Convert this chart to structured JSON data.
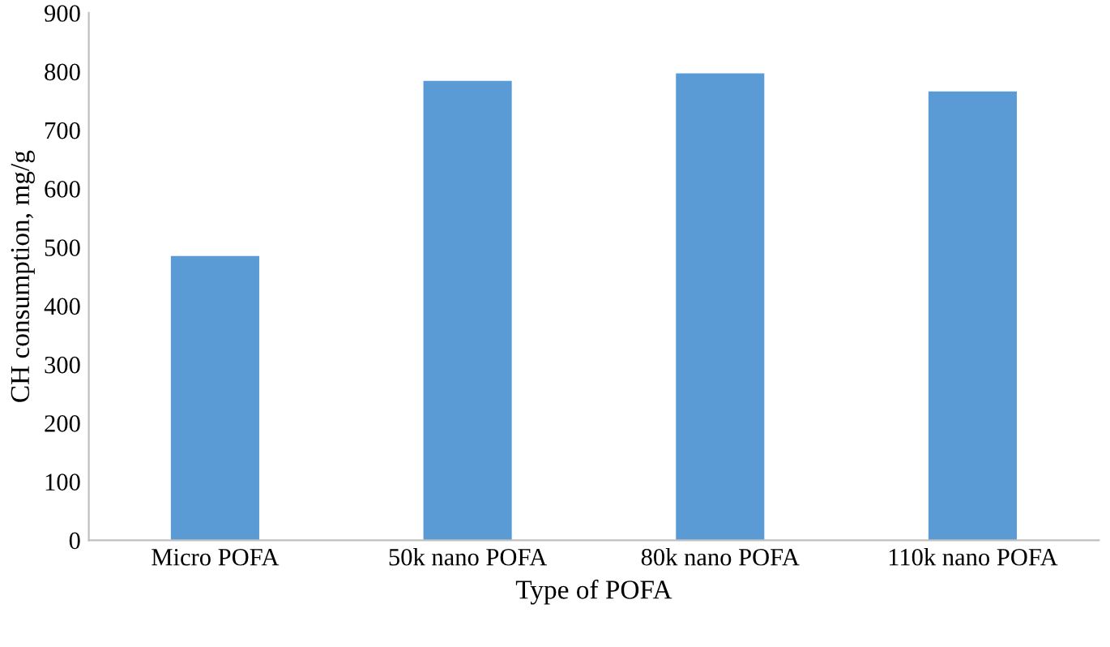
{
  "chart_data": {
    "type": "bar",
    "xlabel": "Type of POFA",
    "ylabel": "CH consumption, mg/g",
    "categories": [
      "Micro POFA",
      "50k nano POFA",
      "80k nano POFA",
      "110k nano POFA"
    ],
    "values": [
      485,
      784,
      797,
      766
    ],
    "color": "#5b9bd5",
    "ylim": [
      0,
      900
    ],
    "yticks": [
      0,
      100,
      200,
      300,
      400,
      500,
      600,
      700,
      800,
      900
    ],
    "grid": false
  }
}
